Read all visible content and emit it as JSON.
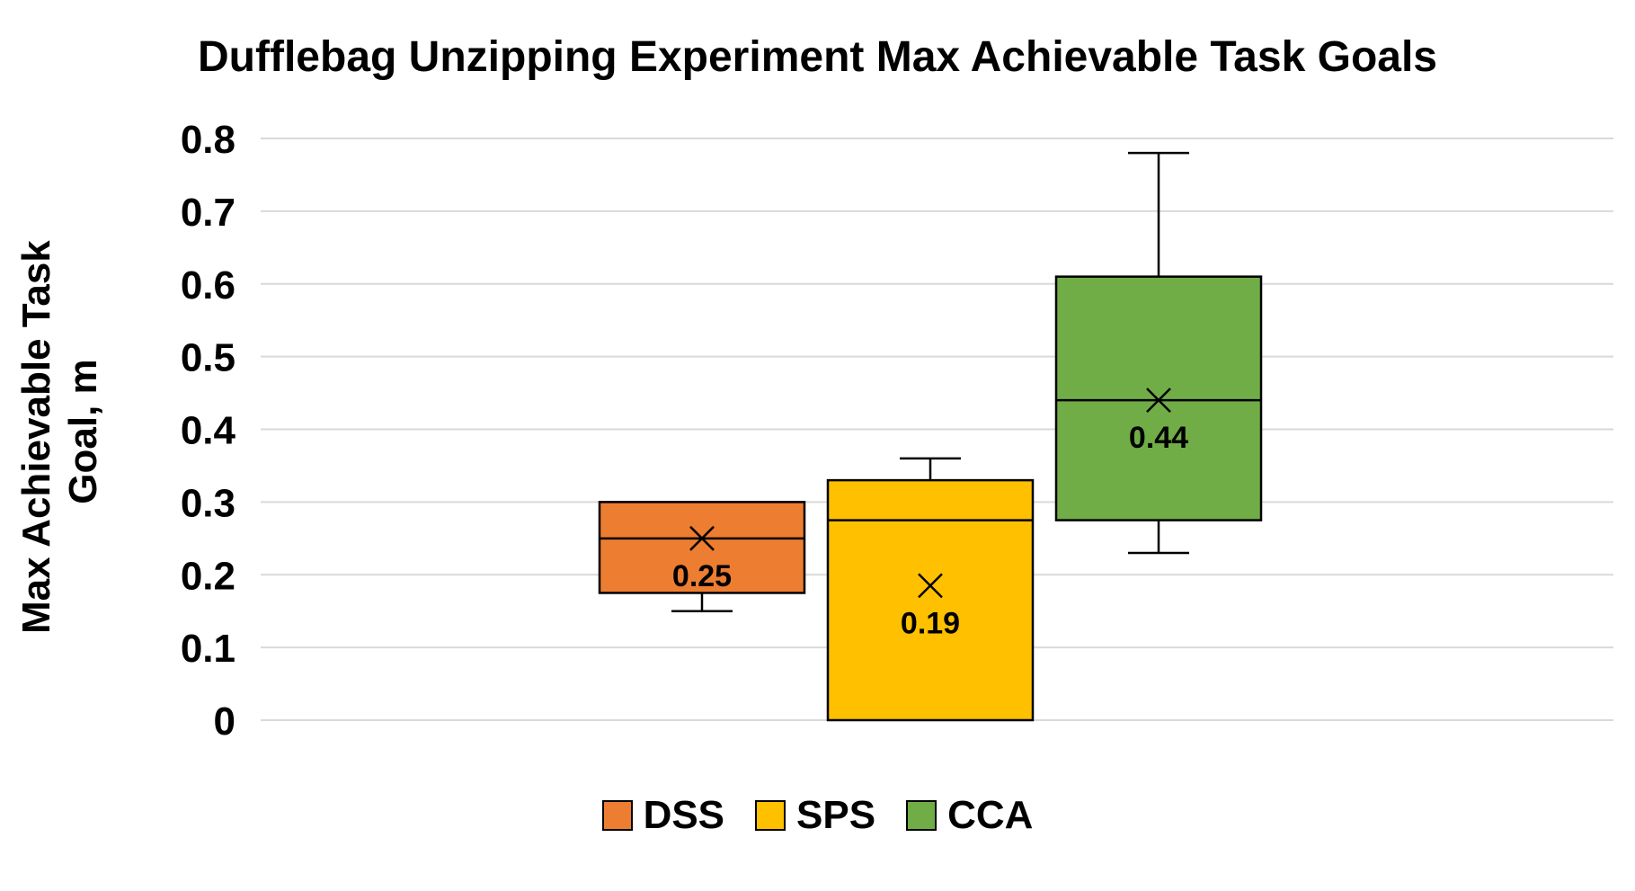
{
  "chart_data": {
    "type": "box",
    "title": "Dufflebag Unzipping Experiment Max Achievable Task Goals",
    "ylabel": "Max Achievable Task Goal, m",
    "xlabel": "",
    "ylim": [
      0,
      0.8
    ],
    "yticks": [
      0,
      0.1,
      0.2,
      0.3,
      0.4,
      0.5,
      0.6,
      0.7,
      0.8
    ],
    "ytick_labels": [
      "0",
      "0.1",
      "0.2",
      "0.3",
      "0.4",
      "0.5",
      "0.6",
      "0.7",
      "0.8"
    ],
    "grid": true,
    "legend_position": "bottom",
    "series": [
      {
        "name": "DSS",
        "color": "#ED7D31",
        "min": 0.15,
        "q1": 0.175,
        "median": 0.25,
        "q3": 0.3,
        "max": 0.3,
        "mean": 0.25,
        "mean_label": "0.25"
      },
      {
        "name": "SPS",
        "color": "#FFC000",
        "min": 0.0,
        "q1": 0.0,
        "median": 0.275,
        "q3": 0.33,
        "max": 0.36,
        "mean": 0.185,
        "mean_label": "0.19"
      },
      {
        "name": "CCA",
        "color": "#70AD47",
        "min": 0.23,
        "q1": 0.275,
        "median": 0.44,
        "q3": 0.61,
        "max": 0.78,
        "mean": 0.44,
        "mean_label": "0.44"
      }
    ]
  }
}
